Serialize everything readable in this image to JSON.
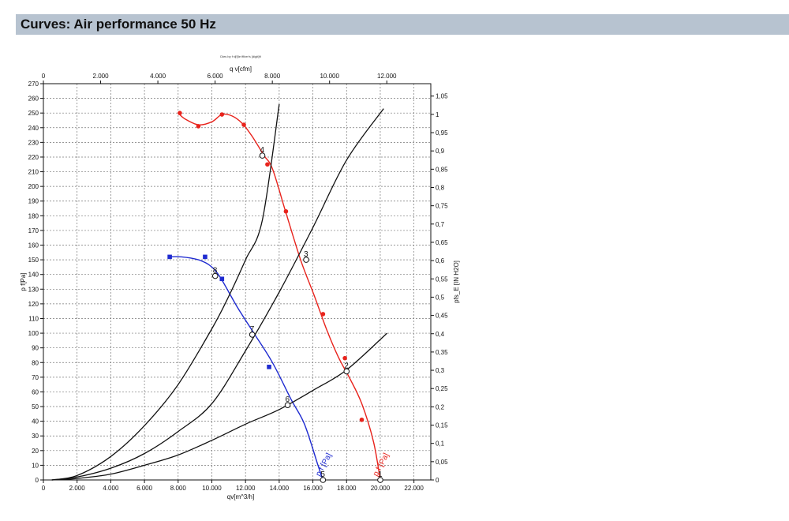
{
  "header": {
    "title": "Curves: Air performance 50 Hz"
  },
  "chart_data": {
    "type": "line",
    "caption": "Dies by f·d[f]Ie ffiber's [digit]ft",
    "xlabel": "qv[m^3/h]",
    "x2label": "q v[cfm]",
    "ylabel": "p f[Pa]",
    "y2label": "pfs_E [IN H2O]",
    "xlim": [
      0,
      23000
    ],
    "ylim": [
      0,
      270
    ],
    "x_ticks": [
      "0",
      "2.000",
      "4.000",
      "6.000",
      "8.000",
      "10.000",
      "12.000",
      "14.000",
      "16.000",
      "18.000",
      "20.000",
      "22.000"
    ],
    "x_tick_values": [
      0,
      2000,
      4000,
      6000,
      8000,
      10000,
      12000,
      14000,
      16000,
      18000,
      20000,
      22000
    ],
    "y_ticks": [
      "0",
      "10",
      "20",
      "30",
      "40",
      "50",
      "60",
      "70",
      "80",
      "90",
      "100",
      "110",
      "120",
      "130",
      "140",
      "150",
      "160",
      "170",
      "180",
      "190",
      "200",
      "210",
      "220",
      "230",
      "240",
      "250",
      "260",
      "270"
    ],
    "y_tick_values": [
      0,
      10,
      20,
      30,
      40,
      50,
      60,
      70,
      80,
      90,
      100,
      110,
      120,
      130,
      140,
      150,
      160,
      170,
      180,
      190,
      200,
      210,
      220,
      230,
      240,
      250,
      260,
      270
    ],
    "x2_ticks": [
      "0",
      "2.000",
      "4.000",
      "6.000",
      "8.000",
      "10.000",
      "12.000"
    ],
    "x2_tick_values": [
      0,
      2000,
      4000,
      6000,
      8000,
      10000,
      12000
    ],
    "y2_ticks": [
      "0",
      "0,05",
      "0,1",
      "0,15",
      "0,2",
      "0,25",
      "0,3",
      "0,35",
      "0,4",
      "0,45",
      "0,5",
      "0,55",
      "0,6",
      "0,65",
      "0,7",
      "0,75",
      "0,8",
      "0,85",
      "0,9",
      "0,95",
      "1",
      "1,05"
    ],
    "y2_tick_values": [
      0,
      0.05,
      0.1,
      0.15,
      0.2,
      0.25,
      0.3,
      0.35,
      0.4,
      0.45,
      0.5,
      0.55,
      0.6,
      0.65,
      0.7,
      0.75,
      0.8,
      0.85,
      0.9,
      0.95,
      1.0,
      1.05
    ],
    "y2_per_y1": 0.0040146,
    "x2_per_x1": 0.588578,
    "grid": true,
    "series": [
      {
        "name": "p f[Pa]",
        "label_text": "p f [Pa]",
        "color": "#e8231c",
        "marker": "circle",
        "x": [
          8000,
          8400,
          9200,
          10000,
          10600,
          11200,
          11800,
          12400,
          13100,
          13600,
          14400,
          15300,
          16100,
          16800,
          17500,
          18200,
          18900,
          19600,
          20000
        ],
        "y": [
          250,
          246,
          242,
          244,
          249,
          248,
          243,
          234,
          221,
          212,
          182,
          149,
          125,
          103,
          84,
          69,
          52,
          26,
          0
        ],
        "markers_x": [
          8100,
          9200,
          10600,
          11900,
          13300,
          14400,
          16600,
          17900,
          18900
        ],
        "markers_y": [
          250,
          241,
          249,
          242,
          215,
          183,
          113,
          83,
          41
        ]
      },
      {
        "name": "p f[Pa]",
        "label_text": "p f [Pa]",
        "color": "#1f2bd0",
        "marker": "square",
        "x": [
          7400,
          8200,
          9200,
          9900,
          10500,
          11500,
          12500,
          13600,
          14700,
          15500,
          16300,
          16600
        ],
        "y": [
          152,
          152,
          150,
          146,
          138,
          118,
          100,
          80,
          55,
          38,
          10,
          0
        ],
        "markers_x": [
          7500,
          9600,
          10600,
          13400
        ],
        "markers_y": [
          152,
          152,
          137,
          77
        ]
      },
      {
        "name": "system-curve-1",
        "color": "#111111",
        "marker": "none",
        "x": [
          500,
          2000,
          4000,
          6000,
          8000,
          10000,
          11000,
          12000,
          13000,
          14000
        ],
        "y": [
          0,
          3,
          16,
          37,
          65,
          103,
          125,
          150,
          177,
          256
        ]
      },
      {
        "name": "system-curve-2",
        "color": "#111111",
        "marker": "none",
        "x": [
          500,
          2000,
          4000,
          6000,
          8000,
          10000,
          12000,
          14000,
          16000,
          18000,
          20200
        ],
        "y": [
          0,
          2,
          8,
          18,
          33,
          52,
          88,
          128,
          172,
          218,
          253
        ]
      },
      {
        "name": "system-curve-3",
        "color": "#111111",
        "marker": "none",
        "x": [
          500,
          2000,
          4000,
          6000,
          8000,
          10000,
          12000,
          14000,
          16000,
          18000,
          20400
        ],
        "y": [
          0,
          1,
          4,
          10,
          17,
          27,
          38,
          48,
          61,
          75,
          100
        ]
      }
    ],
    "operating_points": [
      {
        "label": "4",
        "x": 13000,
        "y": 221
      },
      {
        "label": "3",
        "x": 15600,
        "y": 150
      },
      {
        "label": "2",
        "x": 18000,
        "y": 74
      },
      {
        "label": "1",
        "x": 20000,
        "y": 0
      },
      {
        "label": "8",
        "x": 10200,
        "y": 139
      },
      {
        "label": "7",
        "x": 12400,
        "y": 99
      },
      {
        "label": "6",
        "x": 14500,
        "y": 51
      },
      {
        "label": "5",
        "x": 16600,
        "y": 0
      }
    ]
  }
}
